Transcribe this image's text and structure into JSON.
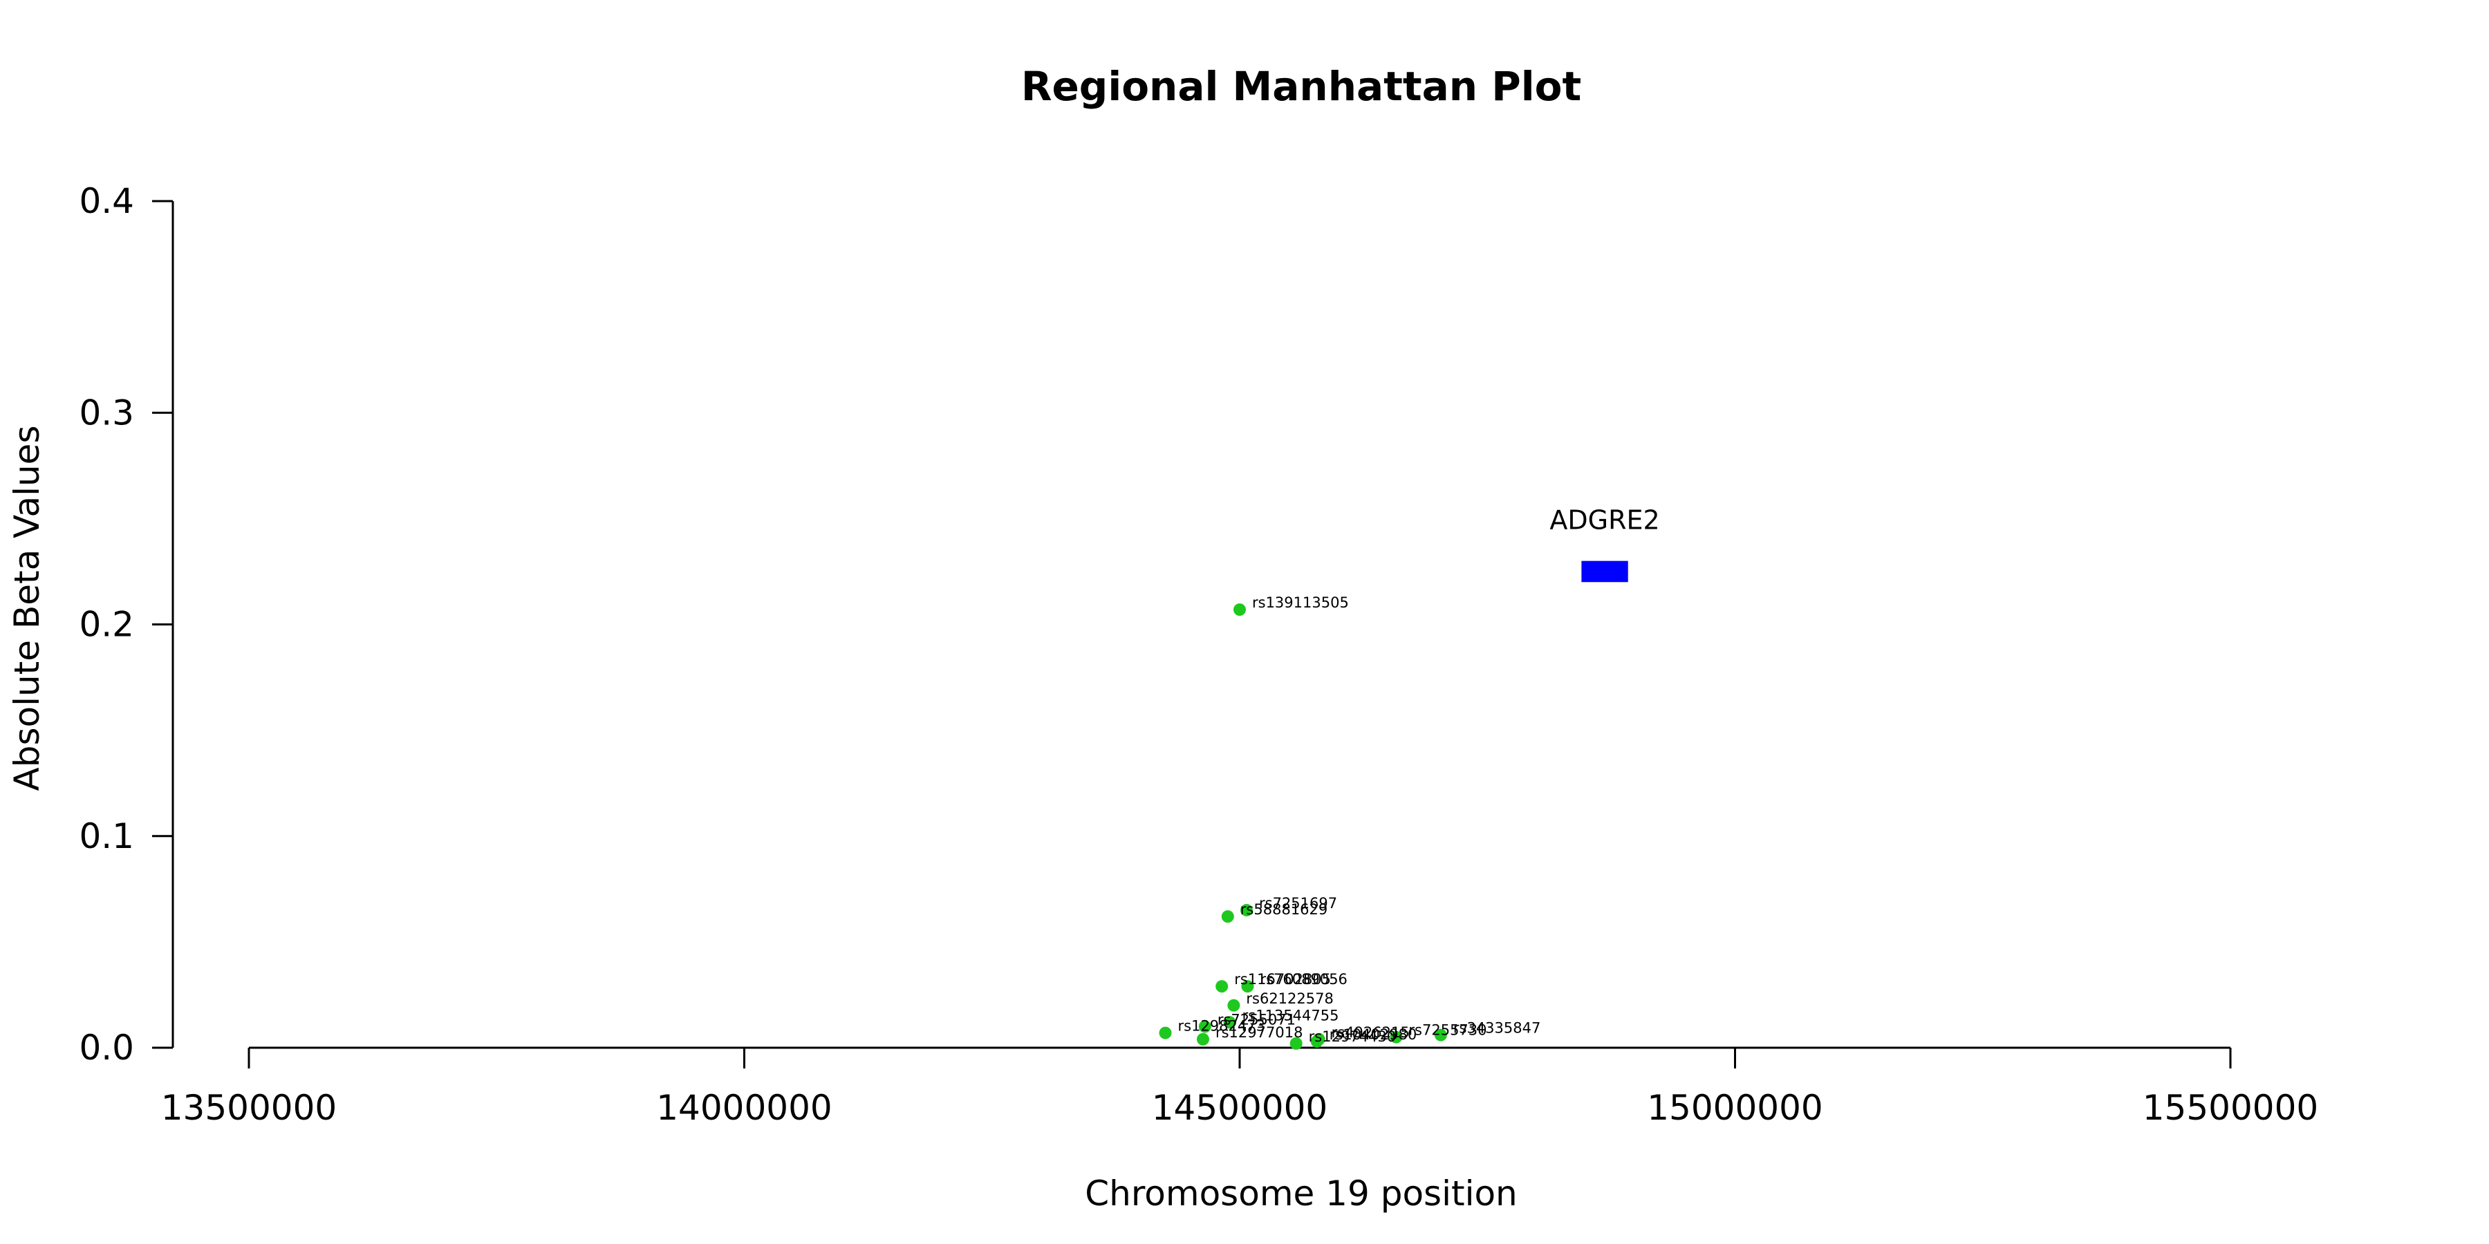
{
  "chart_data": {
    "type": "scatter",
    "title": "Regional Manhattan Plot",
    "xlabel": "Chromosome 19 position",
    "ylabel": "Absolute Beta Values",
    "xlim": [
      13500000,
      15500000
    ],
    "ylim": [
      0,
      0.4
    ],
    "x_ticks": [
      13500000,
      14000000,
      14500000,
      15000000,
      15500000
    ],
    "x_tick_labels": [
      "13500000",
      "14000000",
      "14500000",
      "15000000",
      "15500000"
    ],
    "y_ticks": [
      0,
      0.1,
      0.2,
      0.3,
      0.4
    ],
    "y_tick_labels": [
      "0.0",
      "0.1",
      "0.2",
      "0.3",
      "0.4"
    ],
    "grid": false,
    "point_color": "#1ec81e",
    "series": [
      {
        "points": [
          {
            "x": 14500000,
            "y": 0.207,
            "label": "rs139113505"
          },
          {
            "x": 14507000,
            "y": 0.065,
            "label": "rs7251697"
          },
          {
            "x": 14488000,
            "y": 0.062,
            "label": "rs58881629"
          },
          {
            "x": 14508000,
            "y": 0.029,
            "label": "rs76089056"
          },
          {
            "x": 14482000,
            "y": 0.029,
            "label": "rs116702805"
          },
          {
            "x": 14494000,
            "y": 0.02,
            "label": "rs62122578"
          },
          {
            "x": 14490000,
            "y": 0.012,
            "label": "rs113544755"
          },
          {
            "x": 14465000,
            "y": 0.01,
            "label": "rs7255071"
          },
          {
            "x": 14425000,
            "y": 0.007,
            "label": "rs12982473"
          },
          {
            "x": 14463000,
            "y": 0.004,
            "label": "rs12977018"
          },
          {
            "x": 14703000,
            "y": 0.006,
            "label": "rs34335847"
          },
          {
            "x": 14658000,
            "y": 0.005,
            "label": "rs7255730"
          },
          {
            "x": 14580000,
            "y": 0.004,
            "label": "rs4926215"
          },
          {
            "x": 14578000,
            "y": 0.003,
            "label": "rs10402980"
          },
          {
            "x": 14557000,
            "y": 0.002,
            "label": "rs12974430"
          }
        ]
      }
    ],
    "gene": {
      "name": "ADGRE2",
      "x_start": 14845000,
      "x_end": 14892000,
      "y_low": 0.22,
      "y_high": 0.23,
      "color": "#0000ff"
    }
  }
}
